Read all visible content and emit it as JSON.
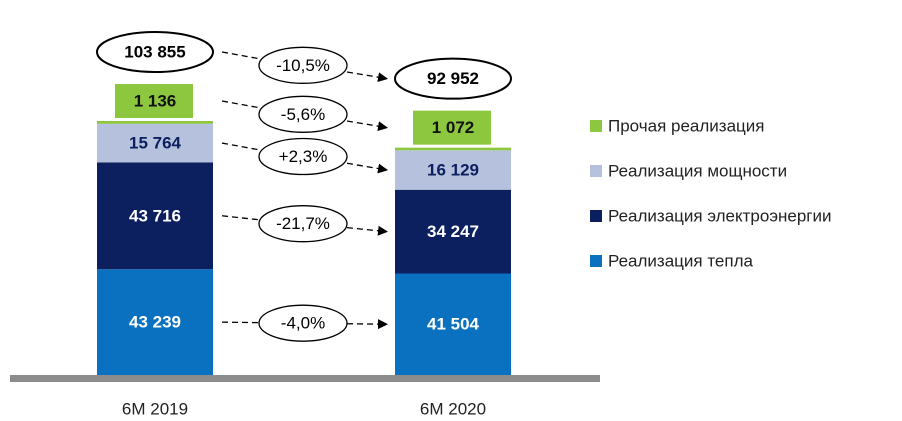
{
  "chart_data": {
    "type": "stacked_bar",
    "categories": [
      "6M 2019",
      "6M 2020"
    ],
    "series": [
      {
        "name": "Реализация тепла",
        "color": "#0a70c0",
        "values": [
          43239,
          41504
        ],
        "value_labels": [
          "43 239",
          "41 504"
        ],
        "change": -4.0,
        "change_label": "-4,0%"
      },
      {
        "name": "Реализация электроэнергии",
        "color": "#0c1f5e",
        "values": [
          43716,
          34247
        ],
        "value_labels": [
          "43 716",
          "34 247"
        ],
        "change": -21.7,
        "change_label": "-21,7%"
      },
      {
        "name": "Реализация мощности",
        "color": "#b6c2dd",
        "values": [
          15764,
          16129
        ],
        "value_labels": [
          "15 764",
          "16 129"
        ],
        "change": 2.3,
        "change_label": "+2,3%"
      },
      {
        "name": "Прочая реализация",
        "color": "#8dc63f",
        "values": [
          1136,
          1072
        ],
        "value_labels": [
          "1 136",
          "1 072"
        ],
        "change": -5.6,
        "change_label": "-5,6%"
      }
    ],
    "totals": [
      103855,
      92952
    ],
    "total_labels": [
      "103 855",
      "92 952"
    ],
    "total_change": -10.5,
    "total_change_label": "-10,5%"
  }
}
